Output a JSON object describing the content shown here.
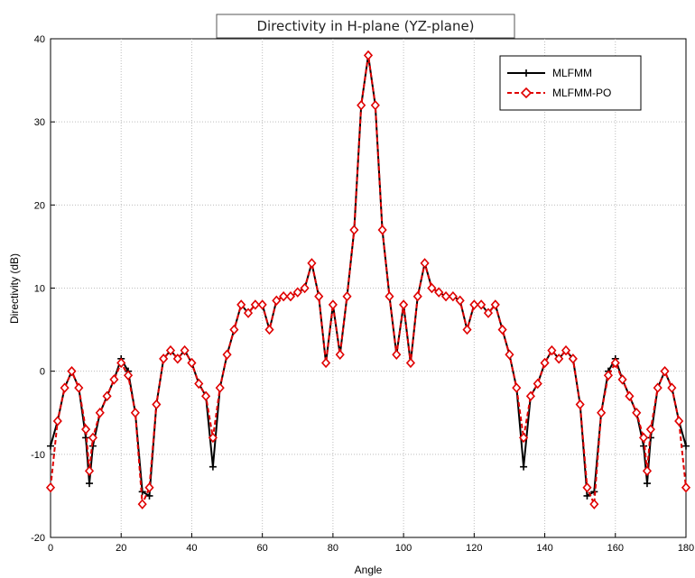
{
  "chart_data": {
    "type": "line",
    "title": "Directivity in H-plane (YZ-plane)",
    "xlabel": "Angle",
    "ylabel": "Directivity (dB)",
    "xlim": [
      0,
      180
    ],
    "ylim": [
      -20,
      40
    ],
    "xticks": [
      0,
      20,
      40,
      60,
      80,
      100,
      120,
      140,
      160,
      180
    ],
    "yticks": [
      -20,
      -10,
      0,
      10,
      20,
      30,
      40
    ],
    "grid": true,
    "legend_position": "top-right",
    "series": [
      {
        "name": "MLFMM",
        "color": "#000000",
        "marker": "plus",
        "line_style": "solid",
        "x": [
          0,
          2,
          4,
          6,
          8,
          10,
          11,
          12,
          14,
          16,
          18,
          20,
          22,
          24,
          26,
          28,
          30,
          32,
          34,
          36,
          38,
          40,
          42,
          44,
          46,
          48,
          50,
          52,
          54,
          56,
          58,
          60,
          62,
          64,
          66,
          68,
          70,
          72,
          74,
          76,
          78,
          80,
          82,
          84,
          86,
          88,
          90,
          92,
          94,
          96,
          98,
          100,
          102,
          104,
          106,
          108,
          110,
          112,
          114,
          116,
          118,
          120,
          122,
          124,
          126,
          128,
          130,
          132,
          134,
          136,
          138,
          140,
          142,
          144,
          146,
          148,
          150,
          152,
          154,
          156,
          158,
          160,
          162,
          164,
          166,
          168,
          169,
          170,
          172,
          174,
          176,
          178,
          180
        ],
        "y": [
          -9,
          -6,
          -2,
          0,
          -2,
          -8,
          -13.5,
          -9,
          -5,
          -3,
          -1,
          1.5,
          0,
          -5,
          -14.5,
          -15,
          -4,
          1.5,
          2.5,
          1.5,
          2.5,
          1,
          -1.5,
          -3,
          -11.5,
          -2,
          2,
          5,
          8,
          7,
          8,
          8,
          5,
          8.5,
          9,
          9,
          9.5,
          10,
          13,
          9,
          1,
          8,
          2,
          9,
          17,
          32,
          38,
          32,
          17,
          9,
          2,
          8,
          1,
          9,
          13,
          10,
          9.5,
          9,
          9,
          8.5,
          5,
          8,
          8,
          7,
          8,
          5,
          2,
          -2,
          -11.5,
          -3,
          -1.5,
          1,
          2.5,
          1.5,
          2.5,
          1.5,
          -4,
          -15,
          -14.5,
          -5,
          0,
          1.5,
          -1,
          -3,
          -5,
          -9,
          -13.5,
          -8,
          -2,
          0,
          -2,
          -6,
          -9
        ]
      },
      {
        "name": "MLFMM-PO",
        "color": "#e00000",
        "marker": "diamond",
        "line_style": "dashed",
        "x": [
          0,
          2,
          4,
          6,
          8,
          10,
          11,
          12,
          14,
          16,
          18,
          20,
          22,
          24,
          26,
          28,
          30,
          32,
          34,
          36,
          38,
          40,
          42,
          44,
          46,
          48,
          50,
          52,
          54,
          56,
          58,
          60,
          62,
          64,
          66,
          68,
          70,
          72,
          74,
          76,
          78,
          80,
          82,
          84,
          86,
          88,
          90,
          92,
          94,
          96,
          98,
          100,
          102,
          104,
          106,
          108,
          110,
          112,
          114,
          116,
          118,
          120,
          122,
          124,
          126,
          128,
          130,
          132,
          134,
          136,
          138,
          140,
          142,
          144,
          146,
          148,
          150,
          152,
          154,
          156,
          158,
          160,
          162,
          164,
          166,
          168,
          169,
          170,
          172,
          174,
          176,
          178,
          180
        ],
        "y": [
          -14,
          -6,
          -2,
          0,
          -2,
          -7,
          -12,
          -8,
          -5,
          -3,
          -1,
          1,
          -0.5,
          -5,
          -16,
          -14,
          -4,
          1.5,
          2.5,
          1.5,
          2.5,
          1,
          -1.5,
          -3,
          -8,
          -2,
          2,
          5,
          8,
          7,
          8,
          8,
          5,
          8.5,
          9,
          9,
          9.5,
          10,
          13,
          9,
          1,
          8,
          2,
          9,
          17,
          32,
          38,
          32,
          17,
          9,
          2,
          8,
          1,
          9,
          13,
          10,
          9.5,
          9,
          9,
          8.5,
          5,
          8,
          8,
          7,
          8,
          5,
          2,
          -2,
          -8,
          -3,
          -1.5,
          1,
          2.5,
          1.5,
          2.5,
          1.5,
          -4,
          -14,
          -16,
          -5,
          -0.5,
          1,
          -1,
          -3,
          -5,
          -8,
          -12,
          -7,
          -2,
          0,
          -2,
          -6,
          -14
        ]
      }
    ]
  }
}
